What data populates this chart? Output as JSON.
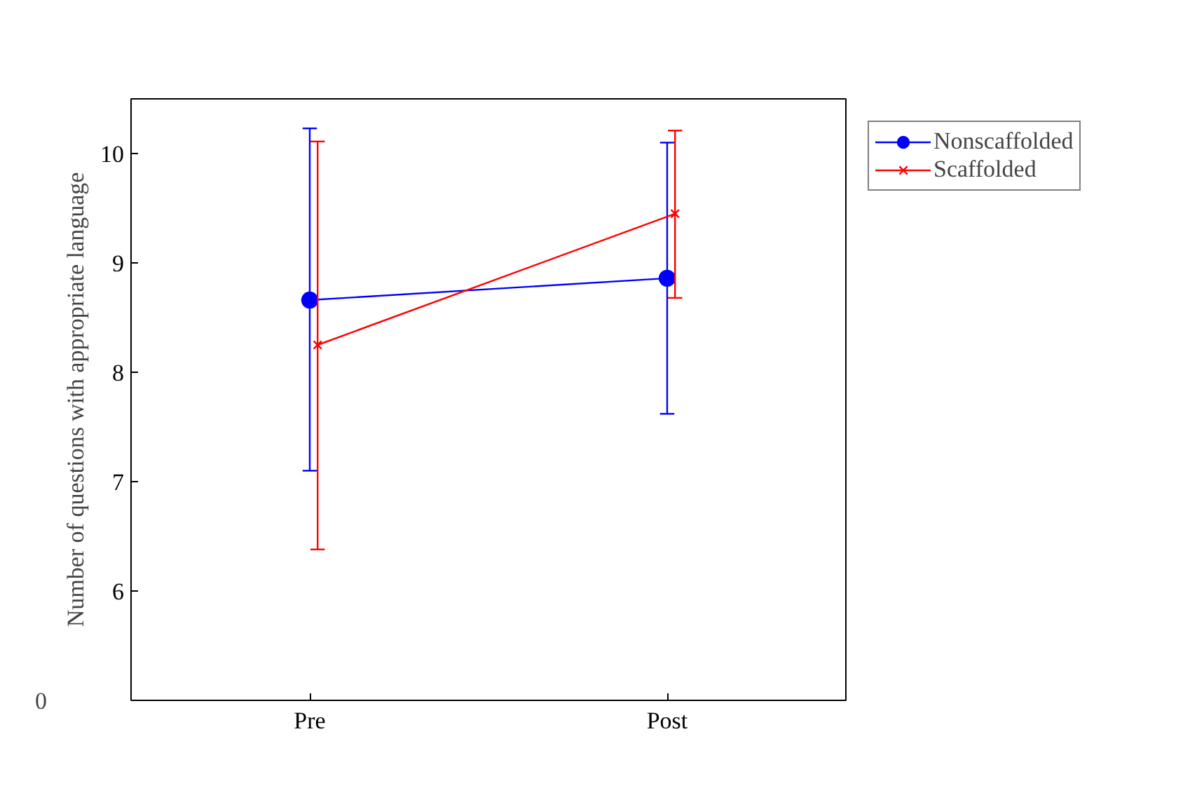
{
  "chart_data": {
    "type": "line",
    "ylabel": "Number of questions with appropriate language",
    "categories": [
      "Pre",
      "Post"
    ],
    "series": [
      {
        "name": "Nonscaffolded",
        "color": "#0000ff",
        "marker": "circle",
        "values": [
          8.66,
          8.86
        ],
        "errors": [
          [
            7.1,
            10.23
          ],
          [
            7.62,
            10.1
          ]
        ]
      },
      {
        "name": "Scaffolded",
        "color": "#ff0000",
        "marker": "cross",
        "values": [
          8.25,
          9.45
        ],
        "errors": [
          [
            6.38,
            10.11
          ],
          [
            8.68,
            10.21
          ]
        ]
      }
    ],
    "ylim": [
      5,
      10.5
    ],
    "yticks": [
      6,
      7,
      8,
      9,
      10
    ],
    "annotations": [
      "0"
    ],
    "grid": false,
    "legend": "top right"
  }
}
